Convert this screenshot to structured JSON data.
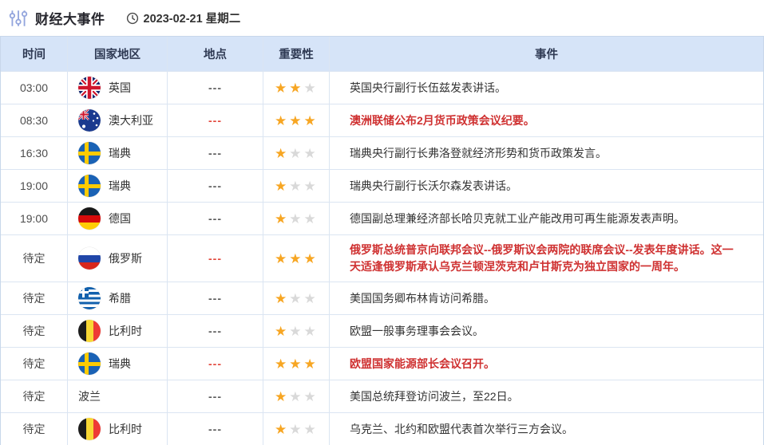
{
  "header": {
    "title": "财经大事件",
    "date": "2023-02-21 星期二"
  },
  "colors": {
    "header_bg": "#d6e4f8",
    "grid_line": "#dbe5f2",
    "star_gold": "#f7a623",
    "star_gray": "#d9d9d9",
    "highlight_red": "#cf3131"
  },
  "table": {
    "columns": [
      "时间",
      "国家地区",
      "地点",
      "重要性",
      "事件"
    ],
    "max_stars": 3,
    "rows": [
      {
        "time": "03:00",
        "country": "英国",
        "flag": "uk",
        "location": "---",
        "location_red": false,
        "stars": 2,
        "event": "英国央行副行长伍兹发表讲话。",
        "event_red": false,
        "tall": false
      },
      {
        "time": "08:30",
        "country": "澳大利亚",
        "flag": "australia",
        "location": "---",
        "location_red": true,
        "stars": 3,
        "event": "澳洲联储公布2月货币政策会议纪要。",
        "event_red": true,
        "tall": false
      },
      {
        "time": "16:30",
        "country": "瑞典",
        "flag": "sweden",
        "location": "---",
        "location_red": false,
        "stars": 1,
        "event": "瑞典央行副行长弗洛登就经济形势和货币政策发言。",
        "event_red": false,
        "tall": false
      },
      {
        "time": "19:00",
        "country": "瑞典",
        "flag": "sweden",
        "location": "---",
        "location_red": false,
        "stars": 1,
        "event": "瑞典央行副行长沃尔森发表讲话。",
        "event_red": false,
        "tall": false
      },
      {
        "time": "19:00",
        "country": "德国",
        "flag": "germany",
        "location": "---",
        "location_red": false,
        "stars": 1,
        "event": "德国副总理兼经济部长哈贝克就工业产能改用可再生能源发表声明。",
        "event_red": false,
        "tall": false
      },
      {
        "time": "待定",
        "country": "俄罗斯",
        "flag": "russia",
        "location": "---",
        "location_red": true,
        "stars": 3,
        "event": "俄罗斯总统普京向联邦会议--俄罗斯议会两院的联席会议--发表年度讲话。这一天适逢俄罗斯承认乌克兰顿涅茨克和卢甘斯克为独立国家的一周年。",
        "event_red": true,
        "tall": true
      },
      {
        "time": "待定",
        "country": "希腊",
        "flag": "greece",
        "location": "---",
        "location_red": false,
        "stars": 1,
        "event": "美国国务卿布林肯访问希腊。",
        "event_red": false,
        "tall": false
      },
      {
        "time": "待定",
        "country": "比利时",
        "flag": "belgium",
        "location": "---",
        "location_red": false,
        "stars": 1,
        "event": "欧盟一般事务理事会会议。",
        "event_red": false,
        "tall": false
      },
      {
        "time": "待定",
        "country": "瑞典",
        "flag": "sweden",
        "location": "---",
        "location_red": true,
        "stars": 3,
        "event": "欧盟国家能源部长会议召开。",
        "event_red": true,
        "tall": false
      },
      {
        "time": "待定",
        "country": "波兰",
        "flag": "none",
        "location": "---",
        "location_red": false,
        "stars": 1,
        "event": "美国总统拜登访问波兰，至22日。",
        "event_red": false,
        "tall": false
      },
      {
        "time": "待定",
        "country": "比利时",
        "flag": "belgium",
        "location": "---",
        "location_red": false,
        "stars": 1,
        "event": "乌克兰、北约和欧盟代表首次举行三方会议。",
        "event_red": false,
        "tall": false
      }
    ]
  }
}
